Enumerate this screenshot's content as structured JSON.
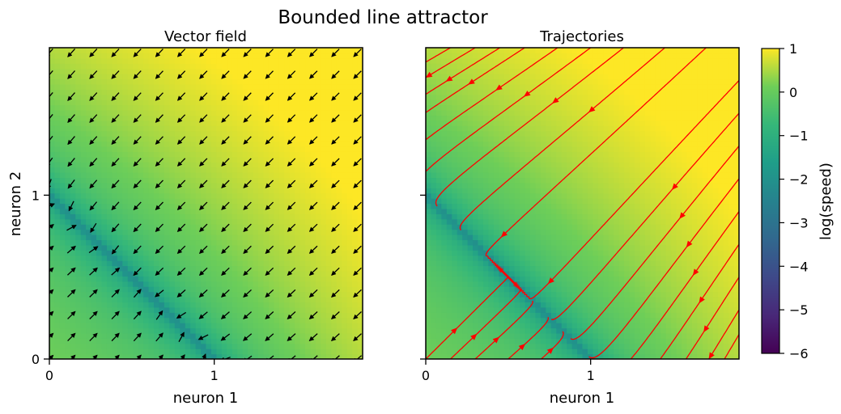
{
  "title": "Bounded line attractor",
  "chart_data": [
    {
      "type": "heatmap",
      "subtype": "vector-field",
      "title": "Vector field",
      "xlabel": "neuron 1",
      "ylabel": "neuron 2",
      "xlim": [
        0,
        1.9
      ],
      "ylim": [
        0,
        1.9
      ],
      "xticks": [
        0,
        1
      ],
      "yticks": [
        0,
        1
      ],
      "line_attractor": {
        "from": [
          0,
          1
        ],
        "to": [
          1,
          0
        ]
      },
      "quiver_grid": {
        "x_start": 0,
        "y_start": 0,
        "step": 0.1335,
        "count": 15
      },
      "arrow_color": "#000000"
    },
    {
      "type": "heatmap",
      "subtype": "streamplot",
      "title": "Trajectories",
      "xlabel": "neuron 1",
      "ylabel": "",
      "xlim": [
        0,
        1.9
      ],
      "ylim": [
        0,
        1.9
      ],
      "xticks": [
        0,
        1
      ],
      "yticks": [
        0,
        1
      ],
      "line_attractor": {
        "from": [
          0,
          1
        ],
        "to": [
          1,
          0
        ]
      },
      "stream_color": "#ff0000",
      "trajectory_starts": [
        [
          0.15,
          1.9
        ],
        [
          0.3,
          1.9
        ],
        [
          0.45,
          1.9
        ],
        [
          0.6,
          1.9
        ],
        [
          0.8,
          1.9
        ],
        [
          1.0,
          1.9
        ],
        [
          1.2,
          1.9
        ],
        [
          1.45,
          1.9
        ],
        [
          1.7,
          1.9
        ],
        [
          1.9,
          1.7
        ],
        [
          1.9,
          1.5
        ],
        [
          1.9,
          1.3
        ],
        [
          1.9,
          1.1
        ],
        [
          1.9,
          0.9
        ],
        [
          1.9,
          0.7
        ],
        [
          1.9,
          0.5
        ],
        [
          1.9,
          0.3
        ],
        [
          1.9,
          0.15
        ],
        [
          0.0,
          1.45
        ],
        [
          0.0,
          1.2
        ],
        [
          0.0,
          0.0
        ],
        [
          0.15,
          0.0
        ],
        [
          0.3,
          0.0
        ],
        [
          0.5,
          0.0
        ],
        [
          0.7,
          0.0
        ]
      ]
    }
  ],
  "colorbar": {
    "label": "log(speed)",
    "min": -6,
    "max": 1,
    "ticks": [
      1,
      0,
      -1,
      -2,
      -3,
      -4,
      -5,
      -6
    ],
    "tick_labels": [
      "1",
      "0",
      "−1",
      "−2",
      "−3",
      "−4",
      "−5",
      "−6"
    ],
    "colormap": "viridis"
  }
}
